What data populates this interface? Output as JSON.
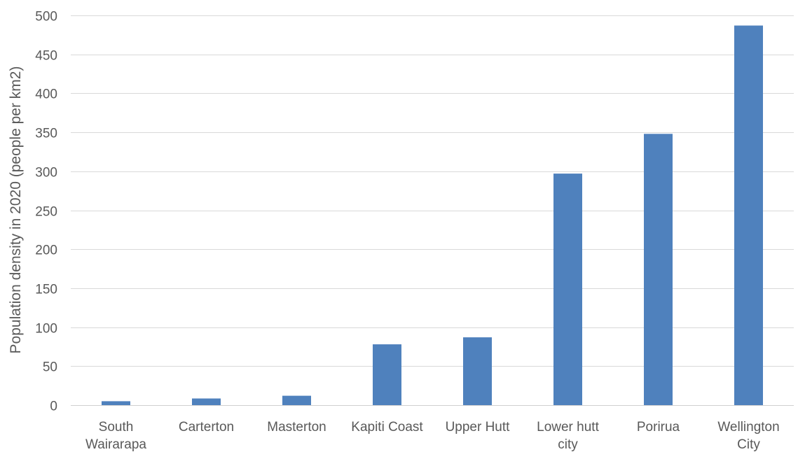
{
  "chart_data": {
    "type": "bar",
    "title": "",
    "xlabel": "",
    "ylabel": "Population density in 2020 (people per km2)",
    "categories": [
      [
        "South",
        "Wairarapa"
      ],
      [
        "Carterton"
      ],
      [
        "Masterton"
      ],
      [
        "Kapiti Coast"
      ],
      [
        "Upper Hutt"
      ],
      [
        "Lower hutt",
        "city"
      ],
      [
        "Porirua"
      ],
      [
        "Wellington",
        "City"
      ]
    ],
    "values": [
      5,
      8.5,
      12,
      78,
      87,
      297,
      348,
      487
    ],
    "ylim": [
      0,
      500
    ],
    "yticks": [
      0,
      50,
      100,
      150,
      200,
      250,
      300,
      350,
      400,
      450,
      500
    ],
    "grid": true,
    "legend": "none",
    "colors": {
      "bar": "#4f81bd",
      "grid": "#d9d9d9",
      "text": "#595959"
    }
  }
}
